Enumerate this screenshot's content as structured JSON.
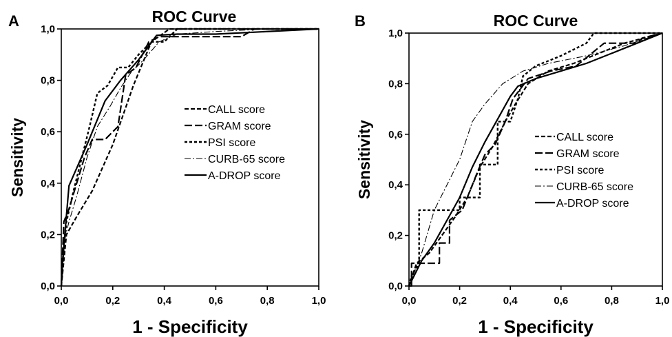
{
  "chart_data": [
    {
      "type": "line",
      "panel_label": "A",
      "title": "ROC Curve",
      "xlabel": "1 - Specificity",
      "ylabel": "Sensitivity",
      "xlim": [
        0,
        1
      ],
      "ylim": [
        0,
        1
      ],
      "xticks": [
        "0,0",
        "0,2",
        "0,4",
        "0,6",
        "0,8",
        "1,0"
      ],
      "yticks": [
        "0,0",
        "0,2",
        "0,4",
        "0,6",
        "0,8",
        "1,0"
      ],
      "grid": false,
      "legend_position": "center-right",
      "series": [
        {
          "name": "CALL score",
          "style": "dash",
          "x": [
            0,
            0.02,
            0.06,
            0.12,
            0.2,
            0.28,
            0.35,
            0.42,
            0.5,
            0.6,
            0.7,
            0.85,
            1.0
          ],
          "y": [
            0,
            0.2,
            0.27,
            0.37,
            0.55,
            0.78,
            0.95,
            1.0,
            1.0,
            1.0,
            1.0,
            1.0,
            1.0
          ]
        },
        {
          "name": "GRAM score",
          "style": "longdash",
          "x": [
            0,
            0.01,
            0.03,
            0.06,
            0.09,
            0.12,
            0.17,
            0.22,
            0.25,
            0.29,
            0.34,
            0.38,
            0.5,
            0.6,
            0.7,
            0.75,
            1.0
          ],
          "y": [
            0,
            0.25,
            0.3,
            0.4,
            0.5,
            0.57,
            0.57,
            0.62,
            0.82,
            0.85,
            0.95,
            0.97,
            0.97,
            0.97,
            0.97,
            1.0,
            1.0
          ]
        },
        {
          "name": "PSI score",
          "style": "shortdash",
          "x": [
            0,
            0.01,
            0.02,
            0.05,
            0.08,
            0.11,
            0.14,
            0.18,
            0.22,
            0.26,
            0.3,
            0.35,
            0.4,
            0.45,
            0.5,
            0.6,
            0.7,
            0.8,
            1.0
          ],
          "y": [
            0,
            0.15,
            0.25,
            0.38,
            0.5,
            0.62,
            0.75,
            0.78,
            0.85,
            0.85,
            0.9,
            0.95,
            0.95,
            1.0,
            1.0,
            1.0,
            1.0,
            1.0,
            1.0
          ]
        },
        {
          "name": "CURB-65 score",
          "style": "dashdot",
          "x": [
            0,
            0.01,
            0.03,
            0.06,
            0.1,
            0.14,
            0.19,
            0.23,
            0.27,
            0.32,
            0.38,
            0.45,
            0.6,
            0.8,
            1.0
          ],
          "y": [
            0,
            0.17,
            0.25,
            0.35,
            0.5,
            0.62,
            0.7,
            0.77,
            0.83,
            0.88,
            0.95,
            0.98,
            0.99,
            1.0,
            1.0
          ]
        },
        {
          "name": "A-DROP score",
          "style": "solid",
          "x": [
            0,
            0.005,
            0.03,
            0.1,
            0.17,
            0.23,
            0.3,
            0.37,
            0.45,
            0.6,
            1.0
          ],
          "y": [
            0,
            0.1,
            0.39,
            0.55,
            0.72,
            0.8,
            0.88,
            0.975,
            0.98,
            0.98,
            1.0
          ]
        }
      ]
    },
    {
      "type": "line",
      "panel_label": "B",
      "title": "ROC Curve",
      "xlabel": "1 - Specificity",
      "ylabel": "Sensitivity",
      "xlim": [
        0,
        1
      ],
      "ylim": [
        0,
        1
      ],
      "xticks": [
        "0,0",
        "0,2",
        "0,4",
        "0,6",
        "0,8",
        "1,0"
      ],
      "yticks": [
        "0,0",
        "0,2",
        "0,4",
        "0,6",
        "0,8",
        "1,0"
      ],
      "grid": false,
      "legend_position": "center-right",
      "series": [
        {
          "name": "CALL score",
          "style": "dash",
          "x": [
            0,
            0.03,
            0.08,
            0.13,
            0.18,
            0.23,
            0.28,
            0.33,
            0.38,
            0.42,
            0.47,
            0.55,
            0.65,
            0.75,
            0.85,
            1.0
          ],
          "y": [
            0,
            0.09,
            0.13,
            0.2,
            0.27,
            0.35,
            0.47,
            0.55,
            0.65,
            0.72,
            0.8,
            0.85,
            0.88,
            0.92,
            0.96,
            1.0
          ]
        },
        {
          "name": "GRAM score",
          "style": "longdash",
          "x": [
            0,
            0.01,
            0.01,
            0.12,
            0.12,
            0.16,
            0.16,
            0.21,
            0.27,
            0.3,
            0.34,
            0.38,
            0.41,
            0.47,
            0.56,
            0.66,
            0.77,
            0.9,
            0.92,
            1.0
          ],
          "y": [
            0,
            0.0,
            0.09,
            0.09,
            0.17,
            0.17,
            0.26,
            0.3,
            0.45,
            0.52,
            0.56,
            0.65,
            0.74,
            0.82,
            0.85,
            0.87,
            0.96,
            0.96,
            0.98,
            1.0
          ]
        },
        {
          "name": "PSI score",
          "style": "shortdash",
          "x": [
            0,
            0.01,
            0.04,
            0.04,
            0.2,
            0.2,
            0.28,
            0.28,
            0.35,
            0.35,
            0.4,
            0.43,
            0.45,
            0.5,
            0.6,
            0.7,
            0.73,
            1.0
          ],
          "y": [
            0,
            0.04,
            0.09,
            0.3,
            0.3,
            0.35,
            0.35,
            0.48,
            0.48,
            0.65,
            0.65,
            0.74,
            0.83,
            0.87,
            0.91,
            0.96,
            1.0,
            1.0
          ]
        },
        {
          "name": "CURB-65 score",
          "style": "dashdot",
          "x": [
            0,
            0.05,
            0.1,
            0.15,
            0.2,
            0.25,
            0.3,
            0.37,
            0.45,
            0.55,
            0.7,
            0.85,
            1.0
          ],
          "y": [
            0,
            0.13,
            0.3,
            0.4,
            0.5,
            0.65,
            0.72,
            0.8,
            0.85,
            0.88,
            0.91,
            0.95,
            1.0
          ]
        },
        {
          "name": "A-DROP score",
          "style": "solid",
          "x": [
            0,
            0.05,
            0.1,
            0.15,
            0.2,
            0.25,
            0.3,
            0.35,
            0.4,
            0.43,
            0.5,
            0.6,
            0.7,
            0.8,
            0.9,
            1.0
          ],
          "y": [
            0,
            0.1,
            0.17,
            0.26,
            0.35,
            0.47,
            0.57,
            0.66,
            0.75,
            0.79,
            0.82,
            0.85,
            0.88,
            0.92,
            0.96,
            1.0
          ]
        }
      ]
    }
  ]
}
